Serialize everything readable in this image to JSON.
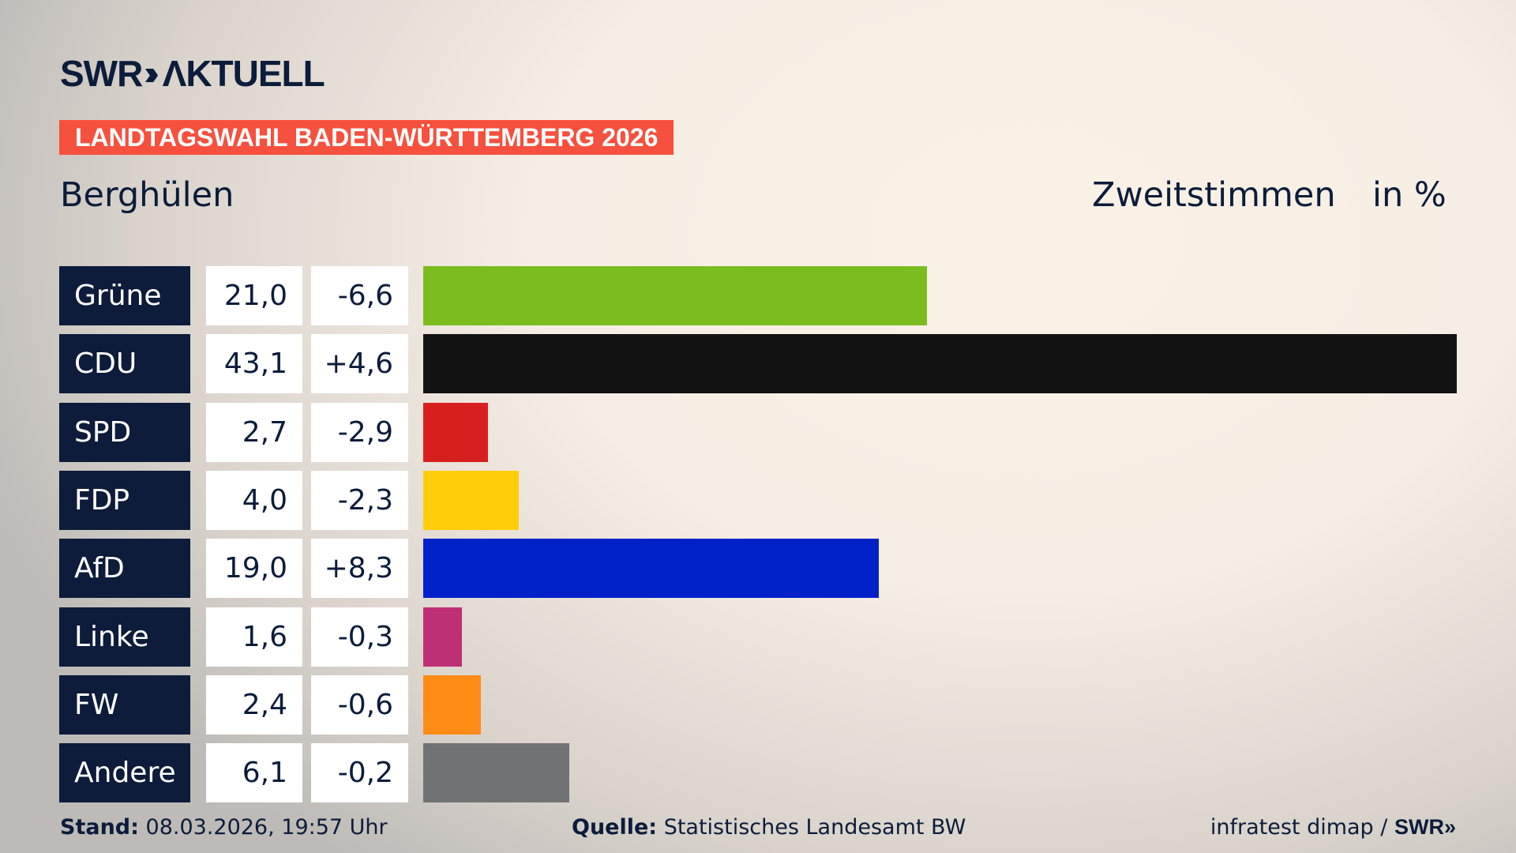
{
  "header": {
    "logo": "SWR AKTUELL",
    "banner": "LANDTAGSWAHL BADEN-WÜRTTEMBERG 2026",
    "region": "Berghülen",
    "metric": "Zweitstimmen",
    "unit": "in %"
  },
  "chart_data": {
    "type": "bar",
    "orientation": "horizontal",
    "xlim": [
      0,
      43.1
    ],
    "categories": [
      "Grüne",
      "CDU",
      "SPD",
      "FDP",
      "AfD",
      "Linke",
      "FW",
      "Andere"
    ],
    "values": [
      21.0,
      43.1,
      2.7,
      4.0,
      19.0,
      1.6,
      2.4,
      6.1
    ],
    "value_labels": [
      "21,0",
      "43,1",
      "2,7",
      "4,0",
      "19,0",
      "1,6",
      "2,4",
      "6,1"
    ],
    "change_labels": [
      "-6,6",
      "+4,6",
      "-2,9",
      "-2,3",
      "+8,3",
      "-0,3",
      "-0,6",
      "-0,2"
    ],
    "changes": [
      -6.6,
      4.6,
      -2.9,
      -2.3,
      8.3,
      -0.3,
      -0.6,
      -0.2
    ],
    "colors": [
      "#7bbd1e",
      "#121212",
      "#d81f1f",
      "#ffcd0a",
      "#0021c8",
      "#be3075",
      "#ff8b17",
      "#717273"
    ]
  },
  "footer": {
    "stand_label": "Stand:",
    "stand_value": "08.03.2026, 19:57 Uhr",
    "source_label": "Quelle:",
    "source_value": "Statistisches Landesamt BW",
    "credit": "infratest dimap / ",
    "credit_logo": "SWR"
  }
}
